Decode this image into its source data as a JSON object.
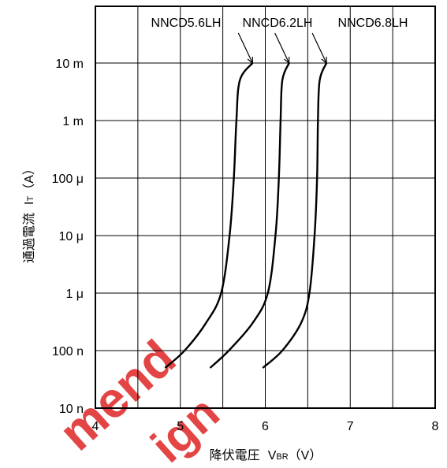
{
  "chart_data": {
    "type": "line",
    "xlabel": "降伏電圧",
    "xlabel_symbol": "V",
    "xlabel_subscript": "BR",
    "xlabel_unit": "（V）",
    "ylabel": "通過電流",
    "ylabel_symbol": "I",
    "ylabel_subscript": "T",
    "ylabel_unit": "（A）",
    "xlim": [
      4,
      8
    ],
    "ylim": [
      1e-08,
      0.1
    ],
    "y_scale": "log",
    "grid": true,
    "x_ticks": [
      {
        "value": 4,
        "label": "4"
      },
      {
        "value": 5,
        "label": "5"
      },
      {
        "value": 6,
        "label": "6"
      },
      {
        "value": 7,
        "label": "7"
      },
      {
        "value": 8,
        "label": "8"
      }
    ],
    "y_ticks": [
      {
        "value": 1e-08,
        "label": "10 n"
      },
      {
        "value": 1e-07,
        "label": "100 n"
      },
      {
        "value": 1e-06,
        "label": "1 μ"
      },
      {
        "value": 1e-05,
        "label": "10 μ"
      },
      {
        "value": 0.0001,
        "label": "100 μ"
      },
      {
        "value": 0.001,
        "label": "1 m"
      },
      {
        "value": 0.01,
        "label": "10 m"
      }
    ],
    "series": [
      {
        "name": "NNCD5.6LH",
        "points": [
          [
            4.82,
            5e-08
          ],
          [
            5.05,
            1e-07
          ],
          [
            5.3,
            3e-07
          ],
          [
            5.48,
            1e-06
          ],
          [
            5.58,
            1e-05
          ],
          [
            5.63,
            0.0001
          ],
          [
            5.66,
            0.001
          ],
          [
            5.7,
            0.005
          ],
          [
            5.85,
            0.01
          ]
        ]
      },
      {
        "name": "NNCD6.2LH",
        "points": [
          [
            5.35,
            5e-08
          ],
          [
            5.57,
            1e-07
          ],
          [
            5.85,
            3e-07
          ],
          [
            6.03,
            1e-06
          ],
          [
            6.12,
            1e-05
          ],
          [
            6.16,
            0.0001
          ],
          [
            6.18,
            0.001
          ],
          [
            6.2,
            0.005
          ],
          [
            6.28,
            0.01
          ]
        ]
      },
      {
        "name": "NNCD6.8LH",
        "points": [
          [
            5.97,
            5e-08
          ],
          [
            6.2,
            1e-07
          ],
          [
            6.42,
            3e-07
          ],
          [
            6.52,
            1e-06
          ],
          [
            6.58,
            1e-05
          ],
          [
            6.61,
            0.0001
          ],
          [
            6.62,
            0.001
          ],
          [
            6.64,
            0.005
          ],
          [
            6.72,
            0.01
          ]
        ]
      }
    ]
  },
  "watermark": {
    "text1": "mend",
    "text2": "ign",
    "color": "#e23a3a"
  }
}
